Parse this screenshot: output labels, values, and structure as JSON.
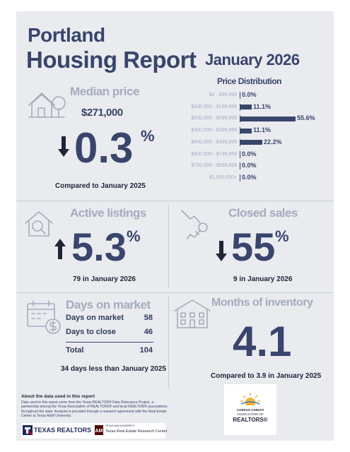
{
  "header": {
    "city": "Portland",
    "title": "Housing Report",
    "period": "January 2026"
  },
  "median_price": {
    "label": "Median price",
    "value": "$271,000",
    "direction": "down",
    "change": "0.3",
    "pct_sign": "%",
    "caption": "Compared to January 2025"
  },
  "price_distribution": {
    "title": "Price Distribution",
    "rows": [
      {
        "range": "$0 - $99,999",
        "pct": 0.0,
        "label": "0.0%"
      },
      {
        "range": "$100,000 - $199,999",
        "pct": 11.1,
        "label": "11.1%"
      },
      {
        "range": "$200,000 - $299,999",
        "pct": 55.6,
        "label": "55.6%"
      },
      {
        "range": "$300,000 - $399,999",
        "pct": 11.1,
        "label": "11.1%"
      },
      {
        "range": "$400,000 - $499,999",
        "pct": 22.2,
        "label": "22.2%"
      },
      {
        "range": "$500,000 - $749,999",
        "pct": 0.0,
        "label": "0.0%"
      },
      {
        "range": "$750,000 - $999,999",
        "pct": 0.0,
        "label": "0.0%"
      },
      {
        "range": "$1,000,000+",
        "pct": 0.0,
        "label": "0.0%"
      }
    ]
  },
  "active_listings": {
    "label": "Active listings",
    "direction": "up",
    "change": "5.3",
    "pct_sign": "%",
    "caption": "79 in January 2026"
  },
  "closed_sales": {
    "label": "Closed sales",
    "direction": "down",
    "change": "55",
    "pct_sign": "%",
    "caption": "9 in January 2026"
  },
  "days_on_market": {
    "label": "Days on market",
    "rows": [
      {
        "label": "Days on market",
        "value": "58"
      },
      {
        "label": "Days to close",
        "value": "46"
      }
    ],
    "total_label": "Total",
    "total_value": "104",
    "caption": "34 days less than January 2025"
  },
  "months_inventory": {
    "label": "Months of inventory",
    "value": "4.1",
    "caption": "Compared to 3.9 in January 2025"
  },
  "about": {
    "title": "About the data used in this report",
    "text": "Data used in this report come from the Texas REALTOR® Data Relevance Project, a partnership among the Texas Association of REALTORS® and local REALTOR® associations throughout the state. Analysis is provided through a research agreement with the Real Estate Center at Texas A&M University."
  },
  "logos": {
    "texas_realtors": "TEXAS REALTORS",
    "research_center_small": "TEXAS A&M UNIVERSITY",
    "research_center": "Texas Real Estate Research Center",
    "ccar_line1": "CORPUS CHRISTI",
    "ccar_line2": "ASSOCIATION OF",
    "ccar_line3": "REALTORS®"
  },
  "colors": {
    "navy": "#39456b",
    "muted": "#a4acbd",
    "card": "#e9ebef",
    "accent_red": "#c8102e"
  }
}
